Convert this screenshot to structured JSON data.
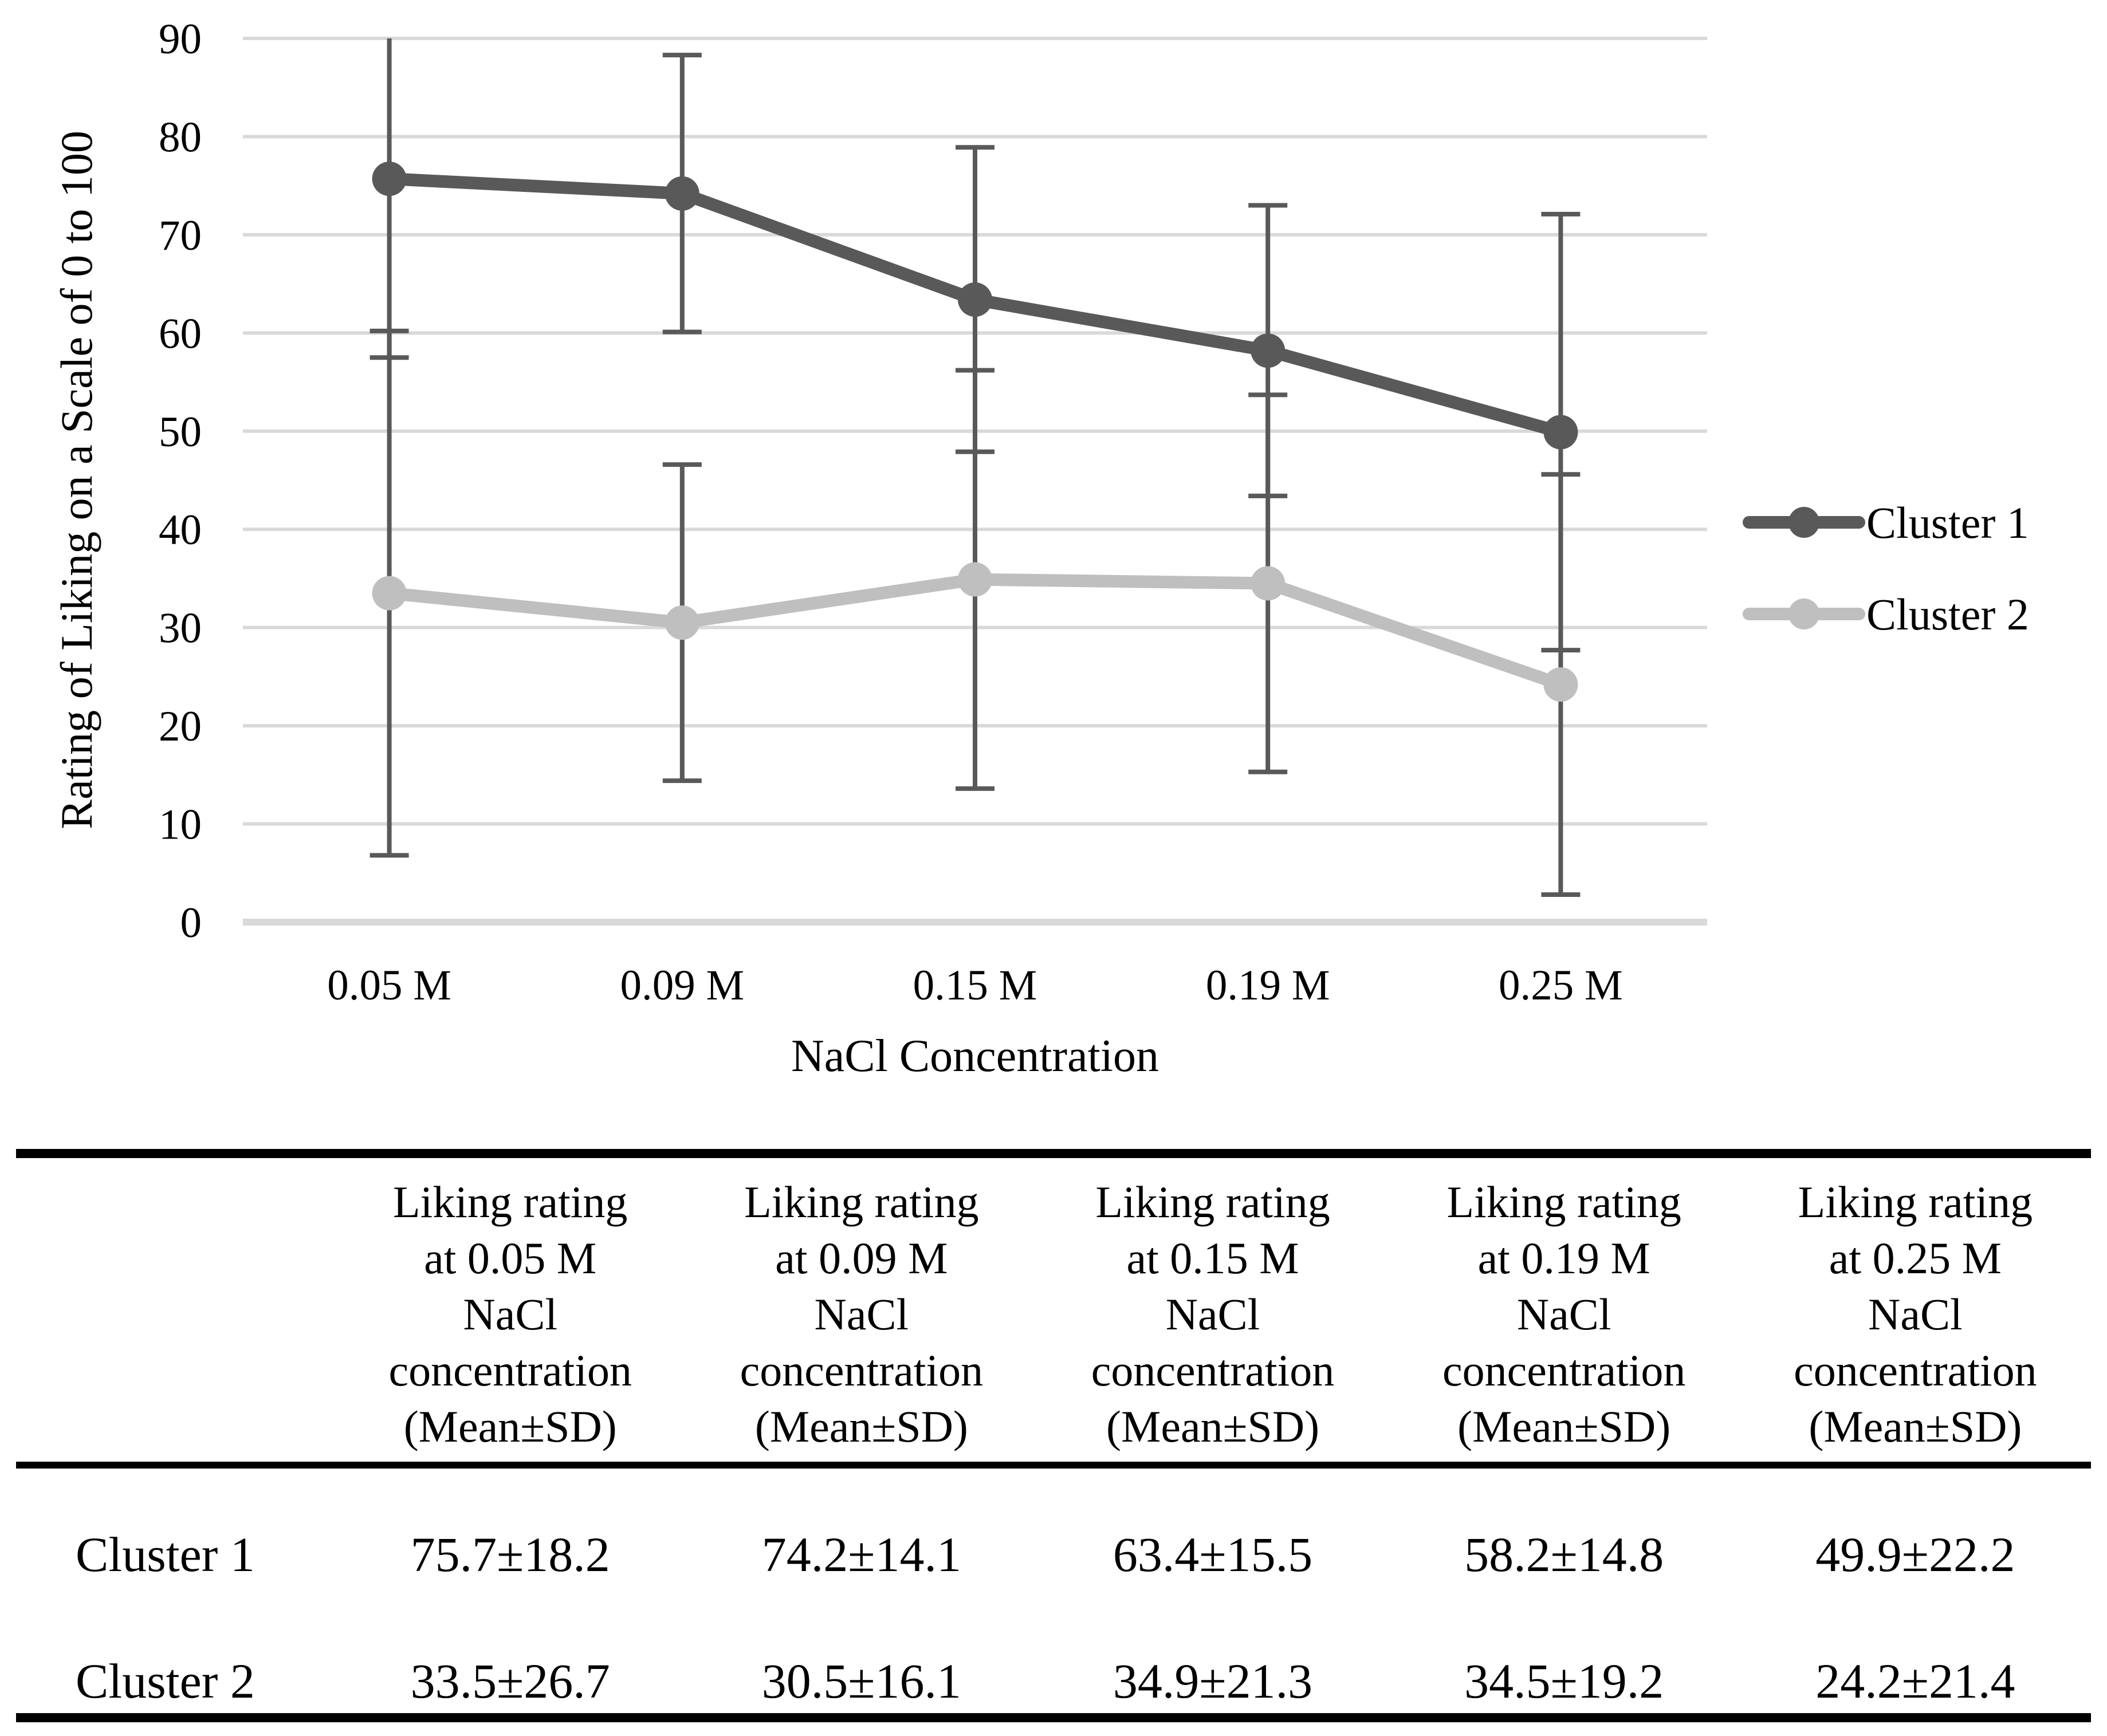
{
  "chart_data": {
    "type": "line",
    "title": "",
    "categories": [
      "0.05 M",
      "0.09 M",
      "0.15 M",
      "0.19 M",
      "0.25 M"
    ],
    "series": [
      {
        "name": "Cluster 1",
        "values": [
          75.7,
          74.2,
          63.4,
          58.2,
          49.9
        ],
        "sd": [
          18.2,
          14.1,
          15.5,
          14.8,
          22.2
        ],
        "color": "#595959"
      },
      {
        "name": "Cluster 2",
        "values": [
          33.5,
          30.5,
          34.9,
          34.5,
          24.2
        ],
        "sd": [
          26.7,
          16.1,
          21.3,
          19.2,
          21.4
        ],
        "color": "#BFBFBF"
      }
    ],
    "xlabel": "NaCl Concentration",
    "ylabel": "Rating of Liking on a Scale of 0 to 100",
    "ylim": [
      0,
      90
    ],
    "ytick_step": 10,
    "grid": true,
    "legend_position": "right",
    "gridline_color": "#D9D9D9",
    "error_bar_color": "#595959",
    "text_color": "#000000"
  },
  "table": {
    "corner_label": "",
    "headers": [
      {
        "lines": [
          "Liking rating",
          "at 0.05 M",
          "NaCl",
          "concentration",
          "(Mean±SD)"
        ]
      },
      {
        "lines": [
          "Liking rating",
          "at 0.09 M",
          "NaCl",
          "concentration",
          "(Mean±SD)"
        ]
      },
      {
        "lines": [
          "Liking rating",
          "at 0.15 M",
          "NaCl",
          "concentration",
          "(Mean±SD)"
        ]
      },
      {
        "lines": [
          "Liking rating",
          "at 0.19 M",
          "NaCl",
          "concentration",
          "(Mean±SD)"
        ]
      },
      {
        "lines": [
          "Liking rating",
          "at 0.25 M",
          "NaCl",
          "concentration",
          "(Mean±SD)"
        ]
      }
    ],
    "rows": [
      {
        "label": "Cluster 1",
        "values": [
          "75.7±18.2",
          "74.2±14.1",
          "63.4±15.5",
          "58.2±14.8",
          "49.9±22.2"
        ]
      },
      {
        "label": "Cluster 2",
        "values": [
          "33.5±26.7",
          "30.5±16.1",
          "34.9±21.3",
          "34.5±19.2",
          "24.2±21.4"
        ]
      }
    ]
  }
}
